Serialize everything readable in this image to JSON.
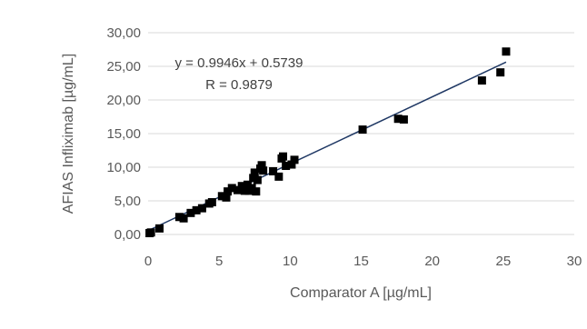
{
  "chart_data": {
    "type": "scatter",
    "title": "",
    "xlabel": "Comparator A [µg/mL]",
    "ylabel": "AFIAS Infliximab [µg/mL]",
    "xlim": [
      0,
      30
    ],
    "ylim": [
      0,
      30
    ],
    "x_ticks": [
      "0",
      "5",
      "10",
      "15",
      "20",
      "25",
      "30"
    ],
    "y_ticks": [
      "0,00",
      "5,00",
      "10,00",
      "15,00",
      "20,00",
      "25,00",
      "30,00"
    ],
    "grid": "horizontal",
    "legend": "none",
    "annotations": {
      "equation": "y = 0.9946x + 0.5739",
      "r_value": "R = 0.9879"
    },
    "trendline": {
      "slope": 0.9946,
      "intercept": 0.5739,
      "x_range": [
        0,
        25.2
      ]
    },
    "series": [
      {
        "points": [
          [
            0.1,
            0.2
          ],
          [
            0.2,
            0.3
          ],
          [
            0.8,
            0.9
          ],
          [
            2.2,
            2.6
          ],
          [
            2.5,
            2.4
          ],
          [
            3.0,
            3.2
          ],
          [
            3.4,
            3.6
          ],
          [
            3.8,
            3.9
          ],
          [
            4.3,
            4.6
          ],
          [
            4.5,
            4.8
          ],
          [
            5.2,
            5.7
          ],
          [
            5.5,
            5.5
          ],
          [
            5.6,
            6.4
          ],
          [
            5.9,
            6.9
          ],
          [
            6.3,
            6.6
          ],
          [
            6.6,
            7.2
          ],
          [
            6.8,
            6.5
          ],
          [
            7.0,
            7.4
          ],
          [
            7.1,
            6.5
          ],
          [
            7.3,
            6.9
          ],
          [
            7.4,
            8.4
          ],
          [
            7.5,
            9.2
          ],
          [
            7.6,
            6.4
          ],
          [
            7.7,
            8.1
          ],
          [
            7.9,
            9.8
          ],
          [
            8.0,
            10.3
          ],
          [
            8.1,
            9.5
          ],
          [
            8.8,
            9.4
          ],
          [
            9.2,
            8.6
          ],
          [
            9.4,
            11.3
          ],
          [
            9.5,
            11.6
          ],
          [
            9.7,
            10.2
          ],
          [
            10.1,
            10.4
          ],
          [
            10.3,
            11.1
          ],
          [
            15.1,
            15.6
          ],
          [
            17.6,
            17.2
          ],
          [
            18.0,
            17.1
          ],
          [
            23.5,
            22.9
          ],
          [
            24.8,
            24.1
          ],
          [
            25.2,
            27.2
          ]
        ]
      }
    ],
    "colors": {
      "marker": "#000000",
      "trendline": "#1f3864",
      "gridline": "#d9d9d9",
      "text": "#595959"
    }
  }
}
